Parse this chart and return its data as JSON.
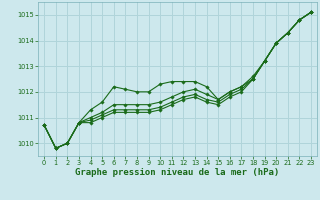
{
  "bg_color": "#cde8ed",
  "grid_color": "#b0d4da",
  "line_color": "#1a6b1a",
  "marker_color": "#1a6b1a",
  "xlabel": "Graphe pression niveau de la mer (hPa)",
  "xlabel_fontsize": 6.5,
  "ylim": [
    1009.5,
    1015.5
  ],
  "xlim": [
    -0.5,
    23.5
  ],
  "yticks": [
    1010,
    1011,
    1012,
    1013,
    1014,
    1015
  ],
  "xticks": [
    0,
    1,
    2,
    3,
    4,
    5,
    6,
    7,
    8,
    9,
    10,
    11,
    12,
    13,
    14,
    15,
    16,
    17,
    18,
    19,
    20,
    21,
    22,
    23
  ],
  "series": [
    [
      1010.7,
      1009.8,
      1010.0,
      1010.8,
      1011.3,
      1011.6,
      1012.2,
      1012.1,
      1012.0,
      1012.0,
      1012.3,
      1012.4,
      1012.4,
      1012.4,
      1012.2,
      1011.7,
      1012.0,
      1012.2,
      1012.6,
      1013.2,
      1013.9,
      1014.3,
      1014.8,
      1015.1
    ],
    [
      1010.7,
      1009.8,
      1010.0,
      1010.8,
      1011.0,
      1011.2,
      1011.5,
      1011.5,
      1011.5,
      1011.5,
      1011.6,
      1011.8,
      1012.0,
      1012.1,
      1011.9,
      1011.7,
      1012.0,
      1012.2,
      1012.5,
      1013.2,
      1013.9,
      1014.3,
      1014.8,
      1015.1
    ],
    [
      1010.7,
      1009.8,
      1010.0,
      1010.8,
      1010.9,
      1011.1,
      1011.3,
      1011.3,
      1011.3,
      1011.3,
      1011.4,
      1011.6,
      1011.8,
      1011.9,
      1011.7,
      1011.6,
      1011.9,
      1012.1,
      1012.5,
      1013.2,
      1013.9,
      1014.3,
      1014.8,
      1015.1
    ],
    [
      1010.7,
      1009.8,
      1010.0,
      1010.8,
      1010.8,
      1011.0,
      1011.2,
      1011.2,
      1011.2,
      1011.2,
      1011.3,
      1011.5,
      1011.7,
      1011.8,
      1011.6,
      1011.5,
      1011.8,
      1012.0,
      1012.5,
      1013.2,
      1013.9,
      1014.3,
      1014.8,
      1015.1
    ]
  ]
}
